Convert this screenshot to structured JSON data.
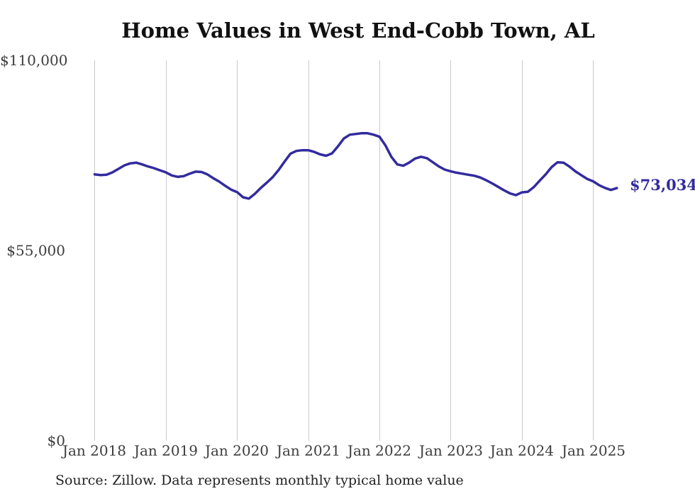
{
  "title": "Home Values in West End-Cobb Town, AL",
  "source_note": "Source: Zillow. Data represents monthly typical home value",
  "colors": {
    "line": "#322b9e",
    "grid": "#c9c9c9",
    "axis_text": "#3d3d3d",
    "title_text": "#111111",
    "end_label_text": "#322b9e",
    "background": "#ffffff"
  },
  "chart_data": {
    "type": "line",
    "title": "Home Values in West End-Cobb Town, AL",
    "xlabel": "",
    "ylabel": "",
    "ylim": [
      0,
      110000
    ],
    "grid": "vertical-only",
    "legend": "none",
    "y_tick_labels": [
      "$110,000",
      "$55,000",
      "$0"
    ],
    "y_tick_values": [
      110000,
      55000,
      0
    ],
    "x_tick_labels": [
      "Jan 2018",
      "Jan 2019",
      "Jan 2020",
      "Jan 2021",
      "Jan 2022",
      "Jan 2023",
      "Jan 2024",
      "Jan 2025"
    ],
    "end_label": "$73,034",
    "end_value": 73034,
    "x": [
      "2018-01",
      "2018-02",
      "2018-03",
      "2018-04",
      "2018-05",
      "2018-06",
      "2018-07",
      "2018-08",
      "2018-09",
      "2018-10",
      "2018-11",
      "2018-12",
      "2019-01",
      "2019-02",
      "2019-03",
      "2019-04",
      "2019-05",
      "2019-06",
      "2019-07",
      "2019-08",
      "2019-09",
      "2019-10",
      "2019-11",
      "2019-12",
      "2020-01",
      "2020-02",
      "2020-03",
      "2020-04",
      "2020-05",
      "2020-06",
      "2020-07",
      "2020-08",
      "2020-09",
      "2020-10",
      "2020-11",
      "2020-12",
      "2021-01",
      "2021-02",
      "2021-03",
      "2021-04",
      "2021-05",
      "2021-06",
      "2021-07",
      "2021-08",
      "2021-09",
      "2021-10",
      "2021-11",
      "2021-12",
      "2022-01",
      "2022-02",
      "2022-03",
      "2022-04",
      "2022-05",
      "2022-06",
      "2022-07",
      "2022-08",
      "2022-09",
      "2022-10",
      "2022-11",
      "2022-12",
      "2023-01",
      "2023-02",
      "2023-03",
      "2023-04",
      "2023-05",
      "2023-06",
      "2023-07",
      "2023-08",
      "2023-09",
      "2023-10",
      "2023-11",
      "2023-12",
      "2024-01",
      "2024-02",
      "2024-03",
      "2024-04",
      "2024-05",
      "2024-06",
      "2024-07",
      "2024-08",
      "2024-09",
      "2024-10",
      "2024-11",
      "2024-12",
      "2025-01",
      "2025-02",
      "2025-03",
      "2025-04",
      "2025-05"
    ],
    "values": [
      77000,
      76800,
      76900,
      77600,
      78600,
      79600,
      80200,
      80400,
      79900,
      79300,
      78800,
      78200,
      77600,
      76700,
      76300,
      76500,
      77200,
      77800,
      77700,
      77000,
      75900,
      74900,
      73700,
      72600,
      71900,
      70400,
      70000,
      71400,
      73100,
      74600,
      76200,
      78300,
      80700,
      83000,
      83800,
      84000,
      84000,
      83500,
      82800,
      82400,
      83100,
      85100,
      87400,
      88500,
      88700,
      88900,
      88900,
      88500,
      87900,
      85400,
      82100,
      79900,
      79500,
      80400,
      81600,
      82100,
      81700,
      80500,
      79300,
      78400,
      77900,
      77500,
      77200,
      76900,
      76600,
      76100,
      75300,
      74400,
      73400,
      72400,
      71500,
      71000,
      71800,
      72000,
      73300,
      75200,
      77000,
      79100,
      80500,
      80400,
      79300,
      77900,
      76800,
      75700,
      75000,
      73900,
      73100,
      72500,
      73034
    ]
  }
}
